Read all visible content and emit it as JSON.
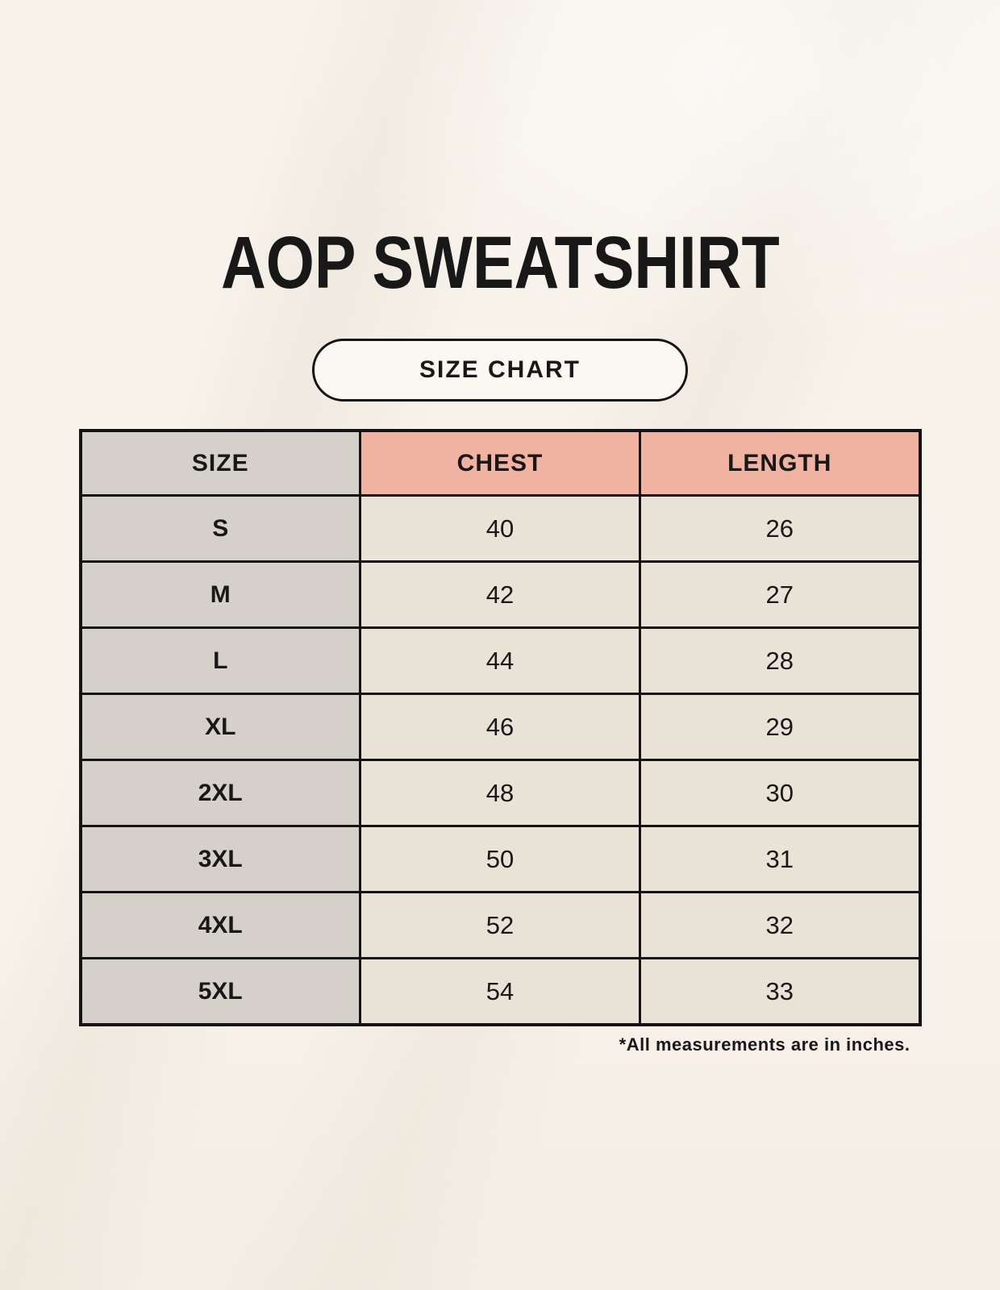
{
  "title": "AOP SWEATSHIRT",
  "badge": {
    "label": "SIZE CHART"
  },
  "table": {
    "columns": [
      "SIZE",
      "CHEST",
      "LENGTH"
    ],
    "rows": [
      {
        "size": "S",
        "chest": "40",
        "length": "26"
      },
      {
        "size": "M",
        "chest": "42",
        "length": "27"
      },
      {
        "size": "L",
        "chest": "44",
        "length": "28"
      },
      {
        "size": "XL",
        "chest": "46",
        "length": "29"
      },
      {
        "size": "2XL",
        "chest": "48",
        "length": "30"
      },
      {
        "size": "3XL",
        "chest": "50",
        "length": "31"
      },
      {
        "size": "4XL",
        "chest": "52",
        "length": "32"
      },
      {
        "size": "5XL",
        "chest": "54",
        "length": "33"
      }
    ]
  },
  "footnote": "*All measurements are in inches.",
  "colors": {
    "background": "#f7f2ea",
    "text": "#181818",
    "border": "#141414",
    "size_column_bg": "#d6d0cb",
    "measure_header_bg": "#f0b3a1",
    "data_cell_bg": "#e9e2d7",
    "badge_bg": "#fbf8f1"
  },
  "chart_data": {
    "type": "table",
    "title": "AOP SWEATSHIRT",
    "subtitle": "SIZE CHART",
    "columns": [
      "SIZE",
      "CHEST",
      "LENGTH"
    ],
    "rows": [
      [
        "S",
        40,
        26
      ],
      [
        "M",
        42,
        27
      ],
      [
        "L",
        44,
        28
      ],
      [
        "XL",
        46,
        29
      ],
      [
        "2XL",
        48,
        30
      ],
      [
        "3XL",
        50,
        31
      ],
      [
        "4XL",
        52,
        32
      ],
      [
        "5XL",
        54,
        33
      ]
    ],
    "units": "inches",
    "note": "*All measurements are in inches."
  }
}
